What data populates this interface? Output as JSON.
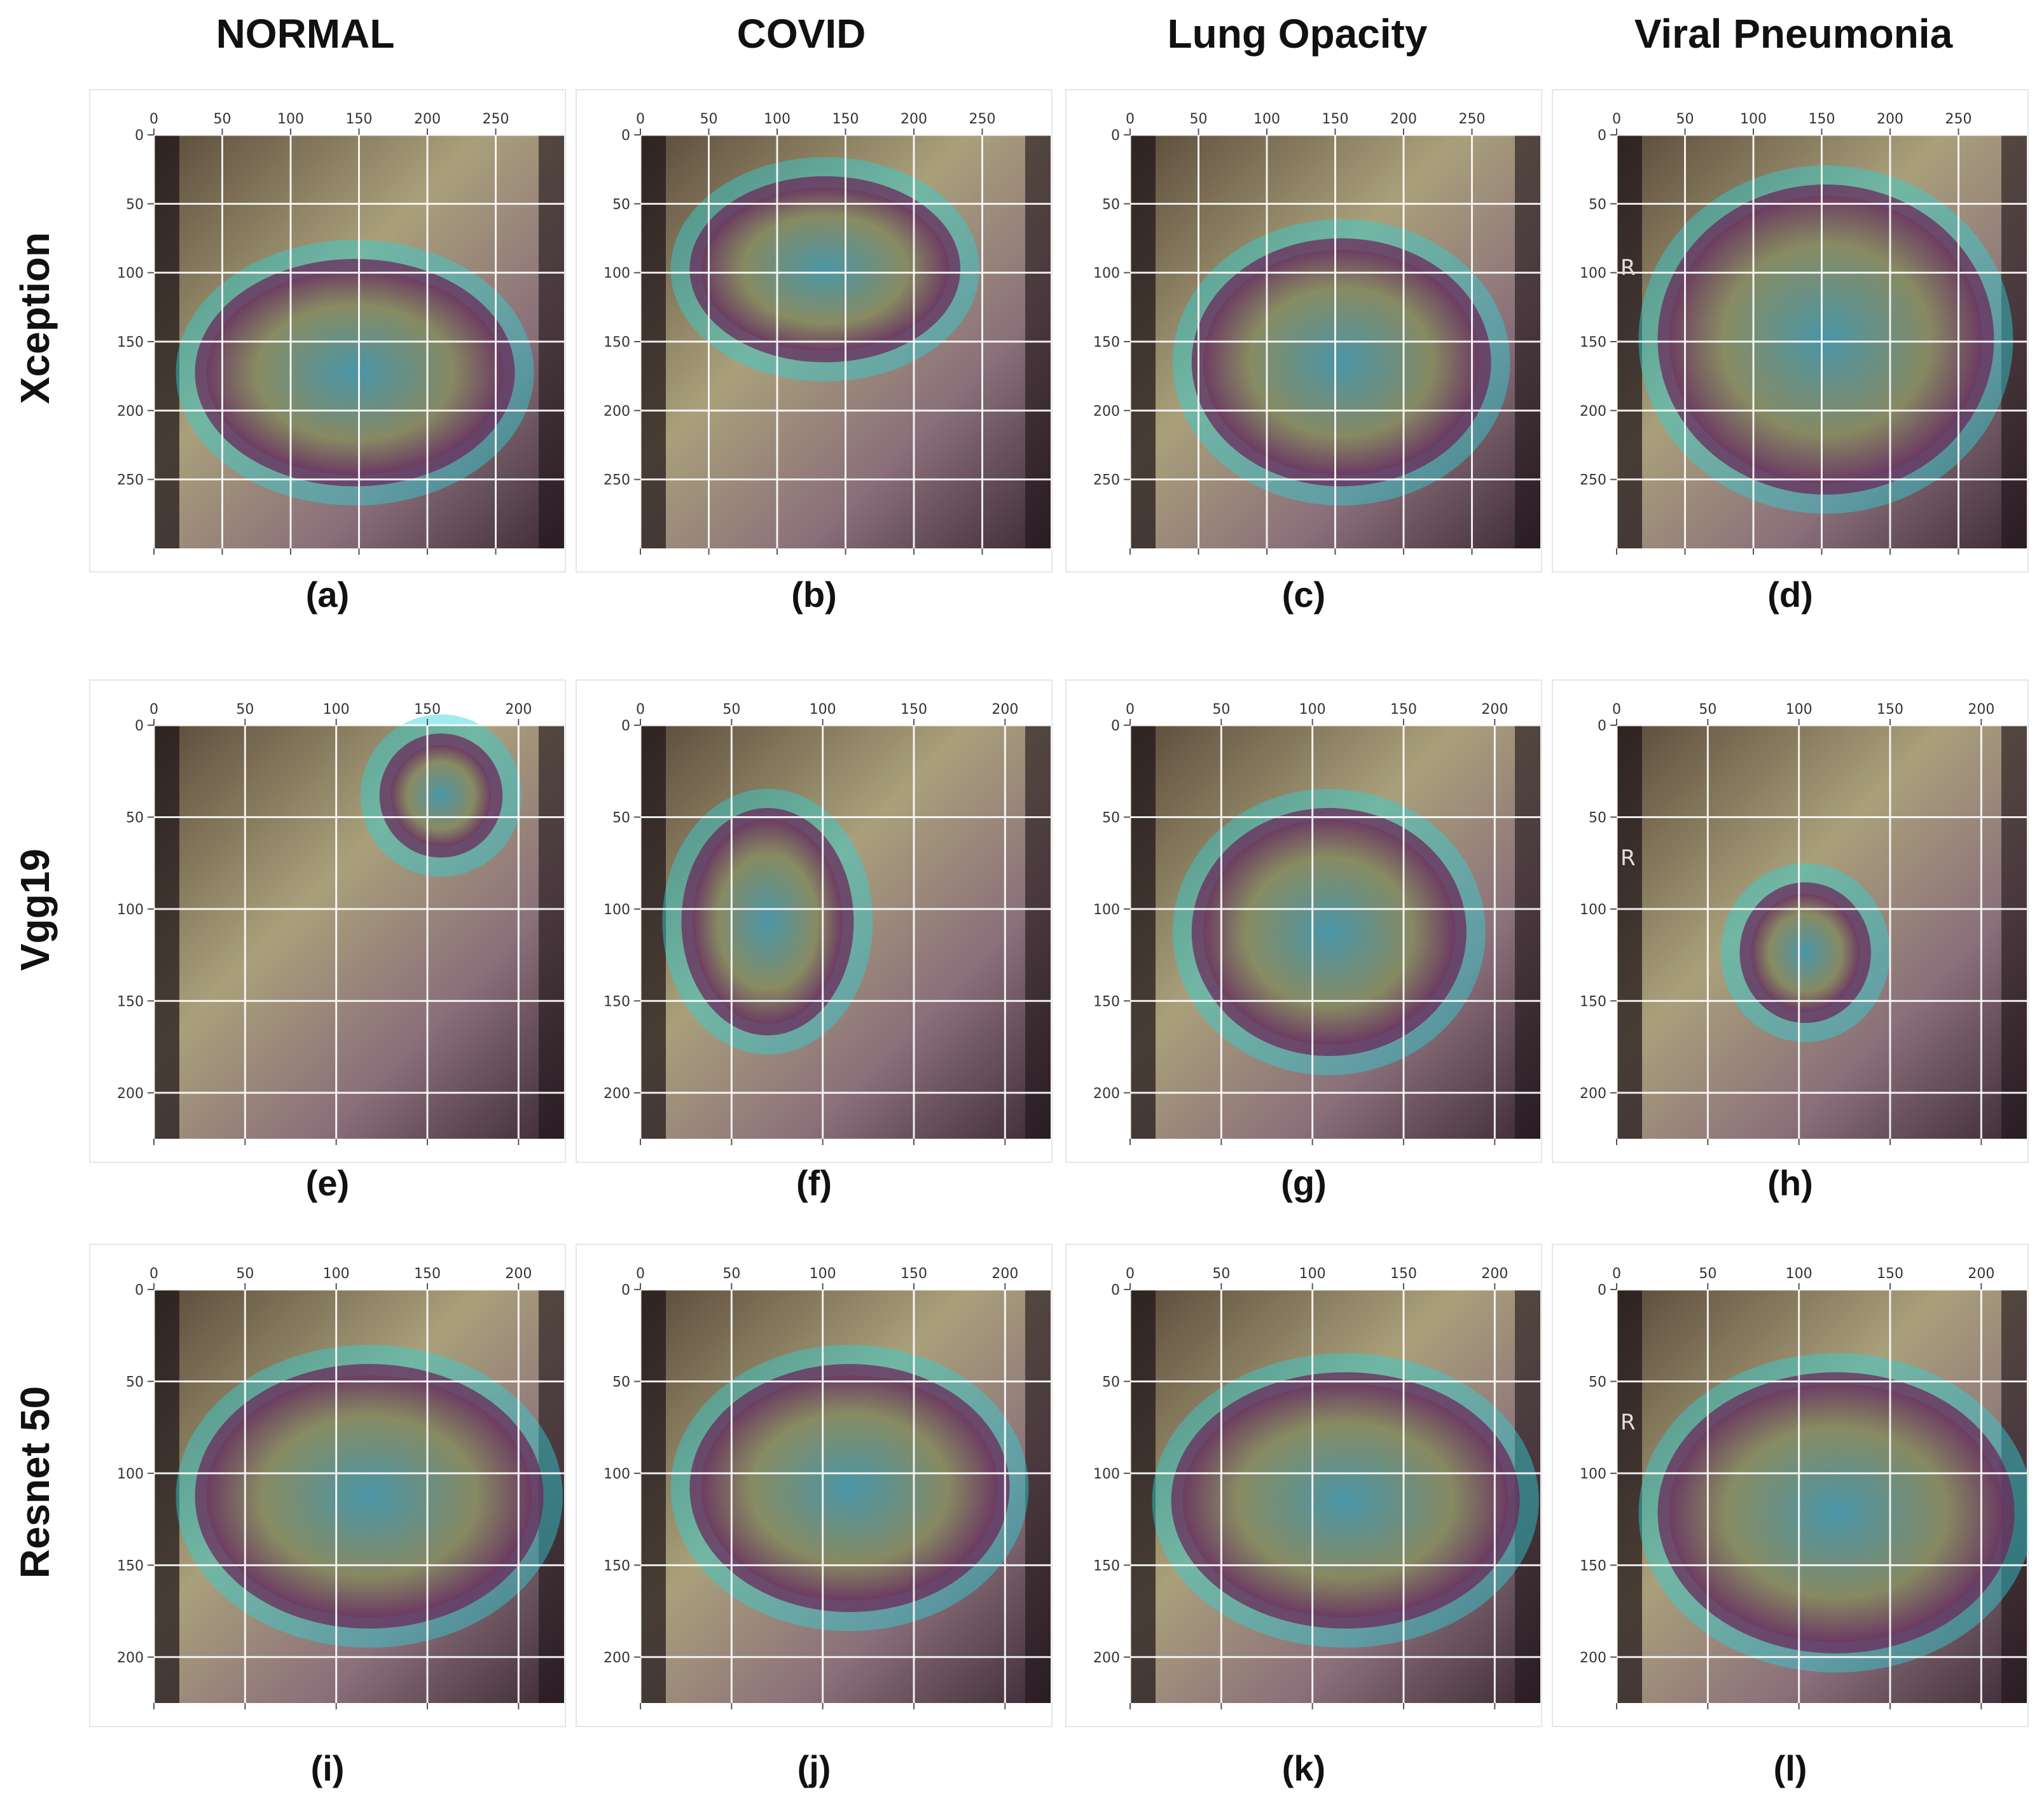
{
  "columns": [
    "NORMAL",
    "COVID",
    "Lung Opacity",
    "Viral Pneumonia"
  ],
  "rows": [
    {
      "label": "Xception",
      "axis_ticks": [
        "0",
        "50",
        "100",
        "150",
        "200",
        "250"
      ],
      "panels": [
        {
          "caption": "(a)",
          "marker": ""
        },
        {
          "caption": "(b)",
          "marker": ""
        },
        {
          "caption": "(c)",
          "marker": ""
        },
        {
          "caption": "(d)",
          "marker": "R"
        }
      ]
    },
    {
      "label": "Vgg19",
      "axis_ticks": [
        "0",
        "50",
        "100",
        "150",
        "200"
      ],
      "panels": [
        {
          "caption": "(e)",
          "marker": ""
        },
        {
          "caption": "(f)",
          "marker": ""
        },
        {
          "caption": "(g)",
          "marker": ""
        },
        {
          "caption": "(h)",
          "marker": "R"
        }
      ]
    },
    {
      "label": "Resnet 50",
      "axis_ticks": [
        "0",
        "50",
        "100",
        "150",
        "200"
      ],
      "panels": [
        {
          "caption": "(i)",
          "marker": ""
        },
        {
          "caption": "(j)",
          "marker": ""
        },
        {
          "caption": "(k)",
          "marker": ""
        },
        {
          "caption": "(l)",
          "marker": "R"
        }
      ]
    }
  ],
  "colors": {
    "heatmap_hot": "#6b2a5a",
    "heatmap_mid": "#2fd3d8",
    "heatmap_warm": "#9fbf5a",
    "heatmap_cool": "#6e4a6a"
  }
}
